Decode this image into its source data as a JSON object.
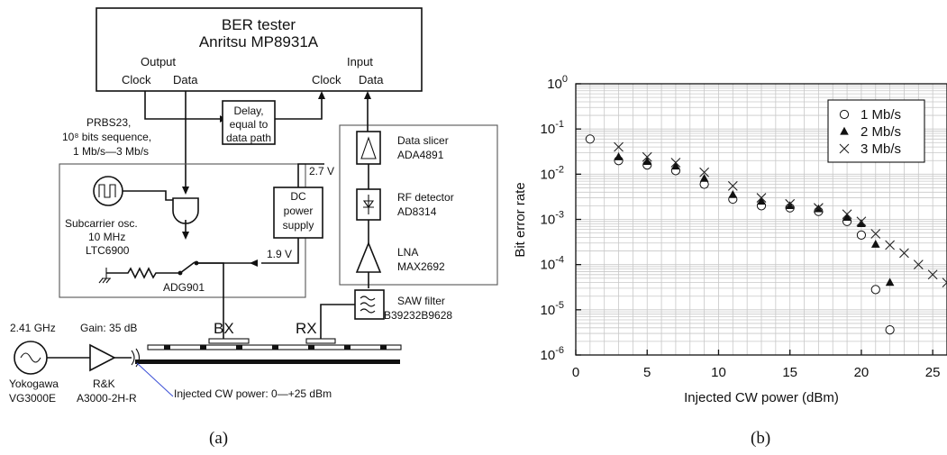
{
  "panel_a": {
    "ber": {
      "title": "BER tester",
      "model": "Anritsu MP8931A",
      "output": "Output",
      "input": "Input",
      "clock_out": "Clock",
      "data_out": "Data",
      "clock_in": "Clock",
      "data_in": "Data"
    },
    "delay": [
      "Delay,",
      "equal to",
      "data path"
    ],
    "prbs": [
      "PRBS23,",
      "10⁸ bits sequence,",
      "1 Mb/s—3 Mb/s"
    ],
    "subcarrier": [
      "Subcarrier osc.",
      "10 MHz",
      "LTC6900"
    ],
    "switch": "ADG901",
    "dc": [
      "DC",
      "power",
      "supply"
    ],
    "v27": "2.7 V",
    "v19": "1.9 V",
    "slicer": [
      "Data slicer",
      "ADA4891"
    ],
    "rfdet": [
      "RF detector",
      "AD8314"
    ],
    "lna": [
      "LNA",
      "MAX2692"
    ],
    "saw": [
      "SAW filter",
      "B39232B9628"
    ],
    "bx": "BX",
    "rx": "RX",
    "freq": "2.41 GHz",
    "gain": "Gain: 35 dB",
    "gen": [
      "Yokogawa",
      "VG3000E"
    ],
    "amp": [
      "R&K",
      "A3000-2H-R"
    ],
    "injected": "Injected CW power: 0—+25 dBm",
    "caption": "(a)"
  },
  "panel_b": {
    "caption": "(b)"
  },
  "chart_data": {
    "type": "scatter",
    "xlabel": "Injected CW power (dBm)",
    "ylabel": "Bit error rate",
    "xlim": [
      0,
      26
    ],
    "ylim": [
      1e-06,
      1
    ],
    "yscale": "log",
    "grid": true,
    "legend": "top-right",
    "x_ticks": [
      "0",
      "5",
      "10",
      "15",
      "20",
      "25"
    ],
    "y_ticks": [
      {
        "m": "10",
        "e": "0"
      },
      {
        "m": "10",
        "e": "-1"
      },
      {
        "m": "10",
        "e": "-2"
      },
      {
        "m": "10",
        "e": "-3"
      },
      {
        "m": "10",
        "e": "-4"
      },
      {
        "m": "10",
        "e": "-5"
      },
      {
        "m": "10",
        "e": "-6"
      }
    ],
    "series": [
      {
        "name": "1 Mb/s",
        "marker": "circle",
        "x": [
          1,
          3,
          5,
          7,
          9,
          11,
          13,
          15,
          17,
          19,
          20,
          21,
          22
        ],
        "y": [
          0.06,
          0.02,
          0.016,
          0.012,
          0.006,
          0.0028,
          0.002,
          0.0018,
          0.0015,
          0.0009,
          0.00045,
          2.8e-05,
          3.6e-06
        ]
      },
      {
        "name": "2 Mb/s",
        "marker": "triangle",
        "x": [
          3,
          5,
          7,
          9,
          11,
          13,
          15,
          17,
          19,
          20,
          21,
          22
        ],
        "y": [
          0.024,
          0.019,
          0.015,
          0.008,
          0.0035,
          0.0025,
          0.002,
          0.0017,
          0.0011,
          0.0008,
          0.00028,
          4e-05
        ]
      },
      {
        "name": "3 Mb/s",
        "marker": "cross",
        "x": [
          3,
          5,
          7,
          9,
          11,
          13,
          15,
          17,
          19,
          20,
          21,
          22,
          23,
          24,
          25,
          26
        ],
        "y": [
          0.04,
          0.024,
          0.018,
          0.011,
          0.0055,
          0.003,
          0.0022,
          0.0018,
          0.0013,
          0.0009,
          0.00048,
          0.00027,
          0.00018,
          0.0001,
          6e-05,
          4e-05
        ]
      }
    ]
  }
}
